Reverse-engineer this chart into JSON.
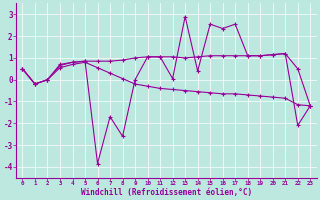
{
  "xlabel": "Windchill (Refroidissement éolien,°C)",
  "background_color": "#bce8e0",
  "line_color": "#990099",
  "grid_color": "#ffffff",
  "x": [
    0,
    1,
    2,
    3,
    4,
    5,
    6,
    7,
    8,
    9,
    10,
    11,
    12,
    13,
    14,
    15,
    16,
    17,
    18,
    19,
    20,
    21,
    22,
    23
  ],
  "series1": [
    0.5,
    -0.2,
    0.0,
    0.7,
    0.8,
    0.85,
    0.85,
    0.85,
    0.9,
    1.0,
    1.05,
    1.05,
    1.05,
    1.0,
    1.05,
    1.1,
    1.1,
    1.1,
    1.1,
    1.1,
    1.15,
    1.2,
    0.5,
    -1.2
  ],
  "series2": [
    0.5,
    -0.2,
    0.0,
    0.65,
    0.8,
    0.85,
    -3.85,
    -1.7,
    -2.6,
    0.0,
    1.05,
    1.05,
    0.05,
    2.9,
    0.4,
    2.55,
    2.35,
    2.55,
    1.1,
    1.1,
    1.15,
    1.2,
    -2.1,
    -1.2
  ],
  "series3": [
    0.5,
    -0.2,
    0.0,
    0.55,
    0.7,
    0.8,
    0.55,
    0.3,
    0.05,
    -0.2,
    -0.3,
    -0.4,
    -0.45,
    -0.5,
    -0.55,
    -0.6,
    -0.65,
    -0.65,
    -0.7,
    -0.75,
    -0.8,
    -0.85,
    -1.15,
    -1.2
  ],
  "ylim": [
    -4.5,
    3.5
  ],
  "xlim": [
    -0.5,
    23.5
  ],
  "yticks": [
    -4,
    -3,
    -2,
    -1,
    0,
    1,
    2,
    3
  ],
  "xticks": [
    0,
    1,
    2,
    3,
    4,
    5,
    6,
    7,
    8,
    9,
    10,
    11,
    12,
    13,
    14,
    15,
    16,
    17,
    18,
    19,
    20,
    21,
    22,
    23
  ],
  "figsize": [
    3.2,
    2.0
  ],
  "dpi": 100
}
